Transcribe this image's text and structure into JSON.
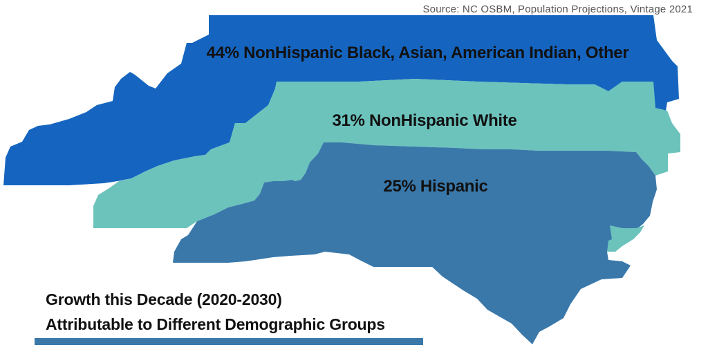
{
  "source": "Source: NC OSBM, Population Projections, Vintage 2021",
  "bands": [
    {
      "id": "black",
      "label": "44% NonHispanic Black, Asian, American Indian, Other",
      "percent": 44,
      "color": "#1565c0"
    },
    {
      "id": "white",
      "label": "31% NonHispanic White",
      "percent": 31,
      "color": "#6cc3bc"
    },
    {
      "id": "hispanic",
      "label": "25% Hispanic",
      "percent": 25,
      "color": "#3a78aa"
    }
  ],
  "caption": {
    "line1": "Growth this Decade (2020-2030)",
    "line2": "Attributable to Different Demographic Groups"
  },
  "underline_color": "#3a78aa"
}
